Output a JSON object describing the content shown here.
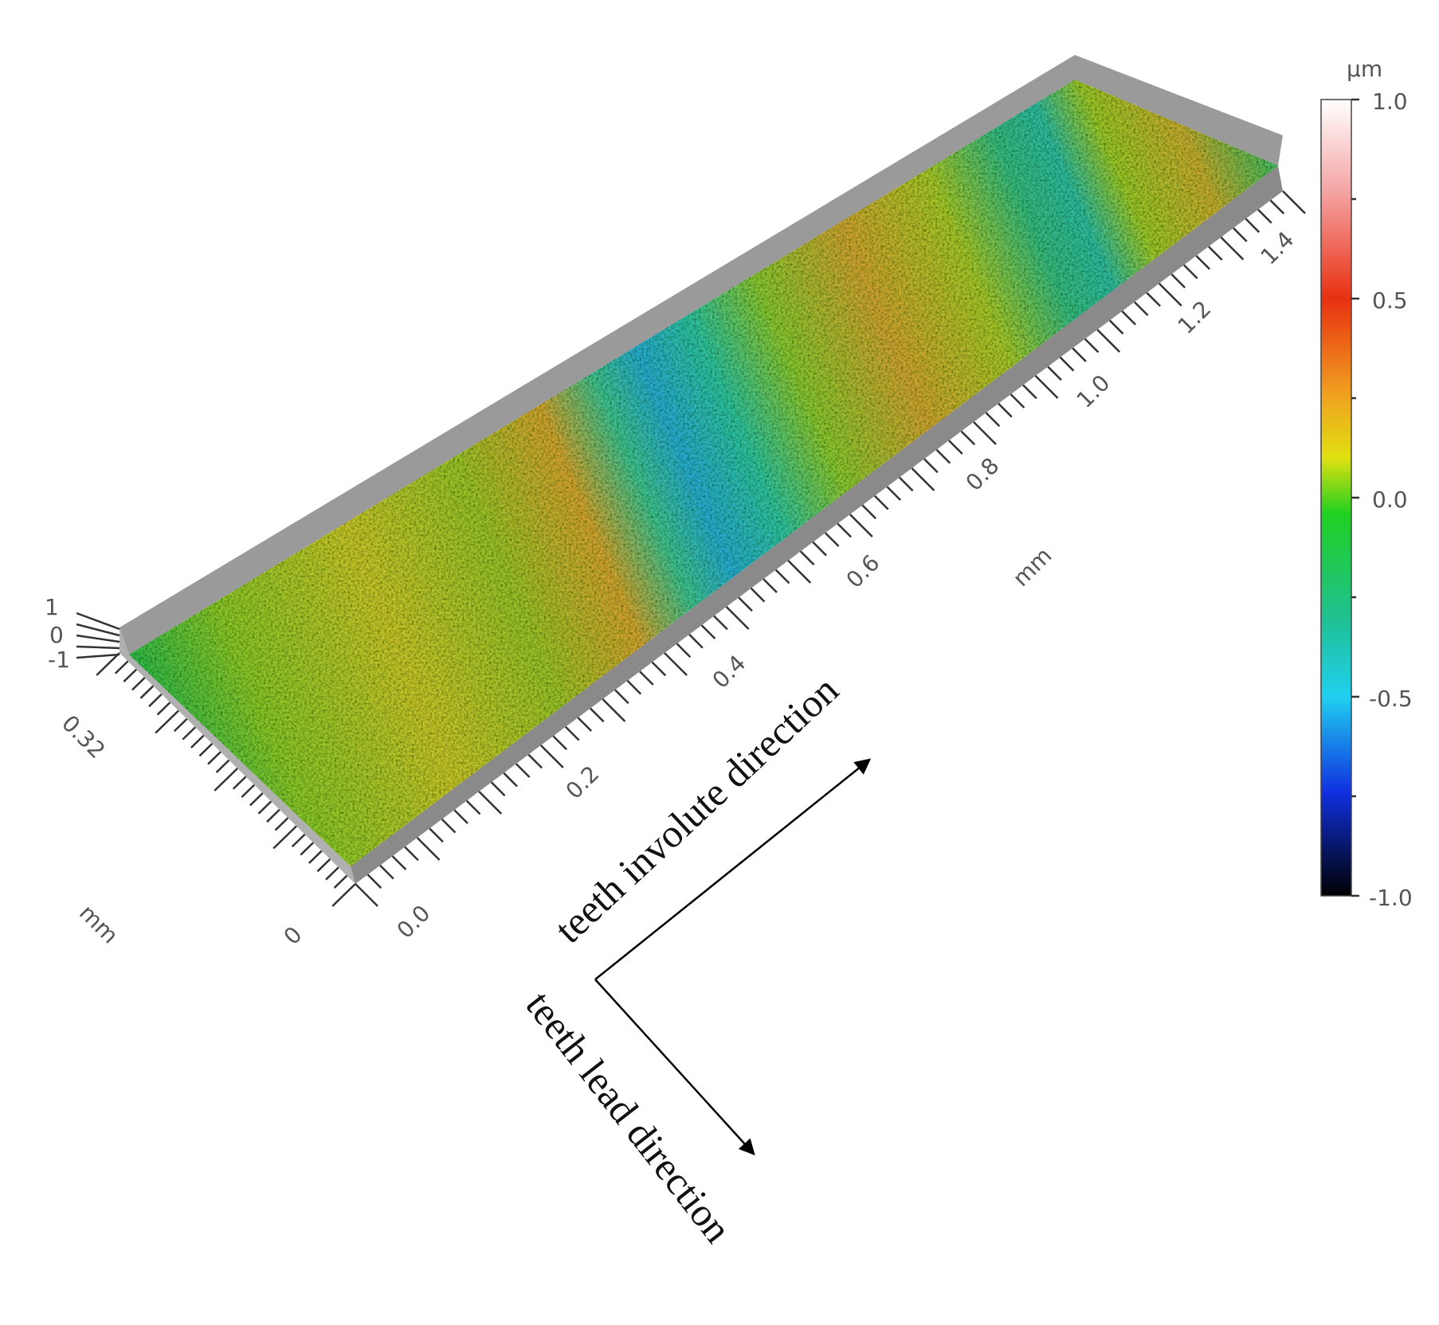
{
  "colorbar": {
    "unit": "µm",
    "ticks": [
      "1.0",
      "0.5",
      "0.0",
      "-0.5",
      "-1.0"
    ]
  },
  "axes": {
    "x": {
      "unit": "mm",
      "ticks": [
        "0.0",
        "0.2",
        "0.4",
        "0.6",
        "0.8",
        "1.0",
        "1.2",
        "1.4"
      ]
    },
    "y": {
      "unit": "mm",
      "ticks": [
        "0",
        "0.32"
      ]
    },
    "z": {
      "ticks": [
        "1",
        "0",
        "-1"
      ]
    }
  },
  "annotations": {
    "involute": "teeth involute direction",
    "lead": "teeth lead direction"
  }
}
